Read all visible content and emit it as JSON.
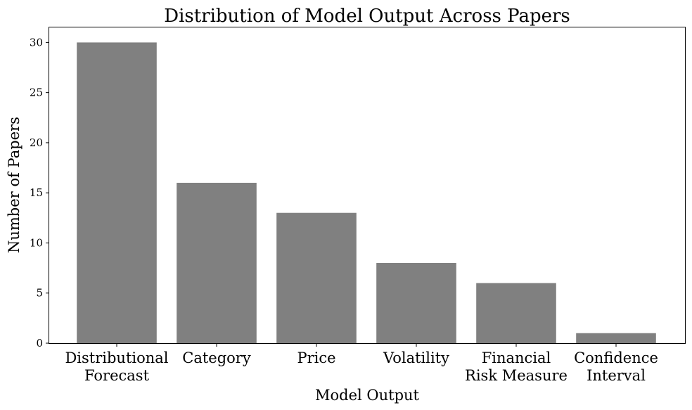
{
  "chart_data": {
    "type": "bar",
    "title": "Distribution of Model Output Across Papers",
    "xlabel": "Model Output",
    "ylabel": "Number of Papers",
    "categories": [
      [
        "Distributional",
        "Forecast"
      ],
      [
        "Category"
      ],
      [
        "Price"
      ],
      [
        "Volatility"
      ],
      [
        "Financial",
        "Risk Measure"
      ],
      [
        "Confidence",
        "Interval"
      ]
    ],
    "values": [
      30,
      16,
      13,
      8,
      6,
      1
    ],
    "ylim": [
      0,
      31.5
    ],
    "yticks": [
      0,
      5,
      10,
      15,
      20,
      25,
      30
    ],
    "bar_color": "#808080",
    "grid": false
  }
}
